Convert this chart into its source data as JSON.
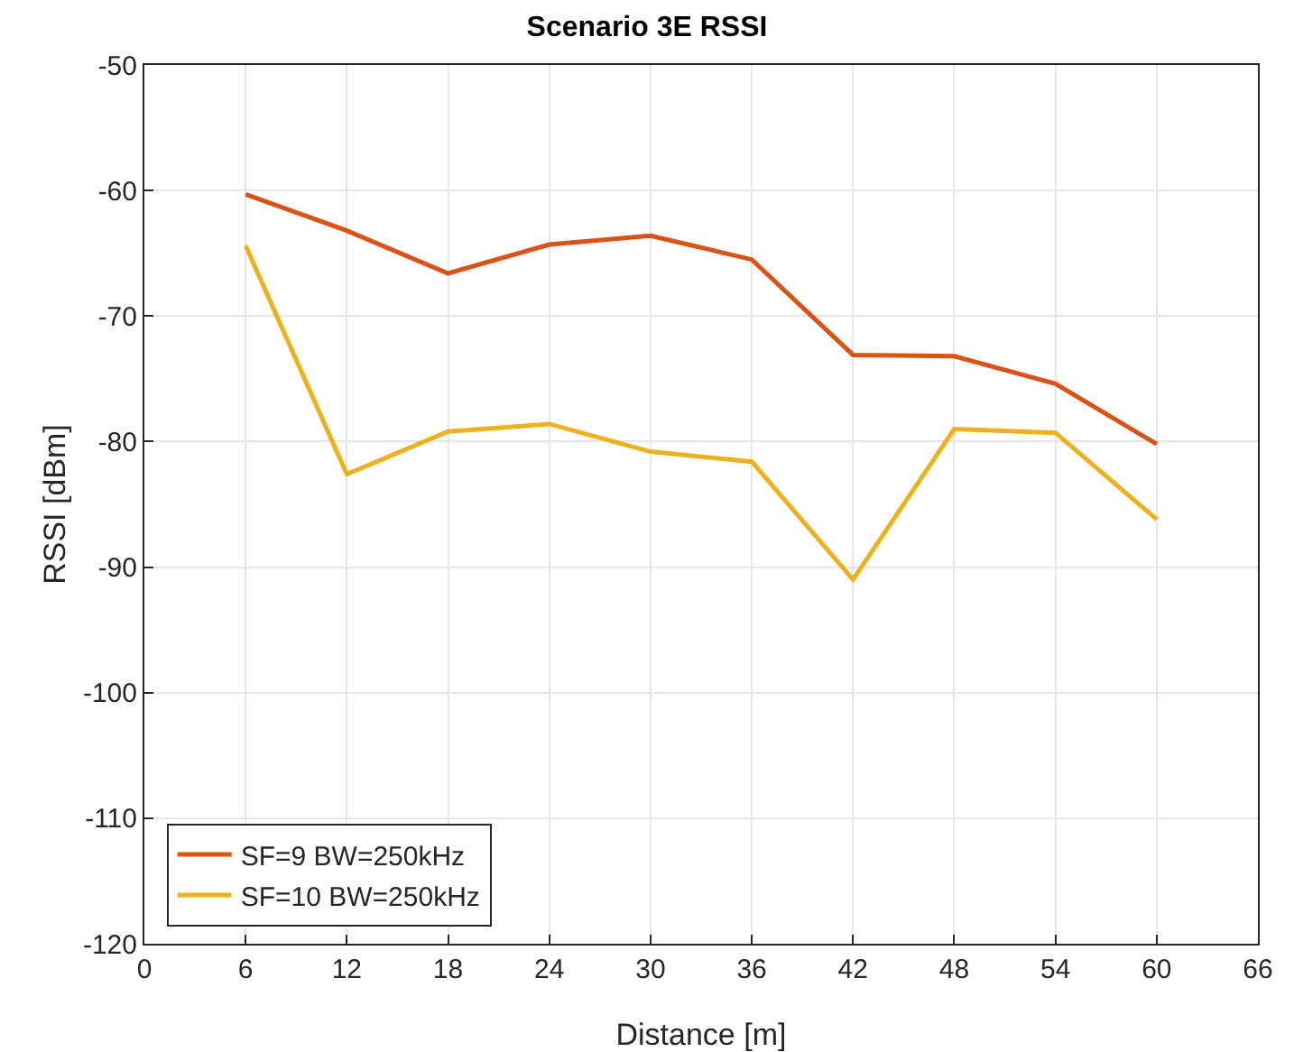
{
  "chart_data": {
    "type": "line",
    "title": "Scenario 3E RSSI",
    "xlabel": "Distance [m]",
    "ylabel": "RSSI [dBm]",
    "x": [
      6,
      12,
      18,
      24,
      30,
      36,
      42,
      48,
      54,
      60
    ],
    "series": [
      {
        "name": "SF=9 BW=250kHz",
        "color": "#d95319",
        "values": [
          -60.3,
          -63.2,
          -66.6,
          -64.3,
          -63.6,
          -65.5,
          -73.1,
          -73.2,
          -75.4,
          -80.2
        ]
      },
      {
        "name": "SF=10 BW=250kHz",
        "color": "#edb120",
        "values": [
          -64.4,
          -82.6,
          -79.2,
          -78.6,
          -80.8,
          -81.6,
          -91.0,
          -79.0,
          -79.3,
          -86.2
        ]
      }
    ],
    "xlim": [
      0,
      66
    ],
    "xticks": [
      0,
      6,
      12,
      18,
      24,
      30,
      36,
      42,
      48,
      54,
      60,
      66
    ],
    "ylim": [
      -120,
      -50
    ],
    "yticks": [
      -120,
      -110,
      -100,
      -90,
      -80,
      -70,
      -60,
      -50
    ],
    "grid": true,
    "legend": "bottom left",
    "marker": "none",
    "line_style": "solid"
  }
}
